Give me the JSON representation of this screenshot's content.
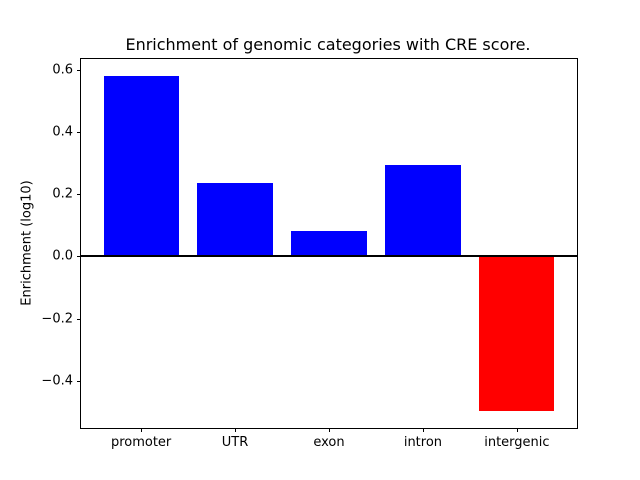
{
  "figure": {
    "background": "#ffffff"
  },
  "chart_data": {
    "type": "bar",
    "title": "Enrichment of genomic categories with CRE score.",
    "xlabel": "",
    "ylabel": "Enrichment (log10)",
    "categories": [
      "promoter",
      "UTR",
      "exon",
      "intron",
      "intergenic"
    ],
    "values": [
      0.58,
      0.235,
      0.082,
      0.295,
      -0.497
    ],
    "positive_color": "#0000ff",
    "negative_color": "#ff0000",
    "bar_colors": [
      "#0000ff",
      "#0000ff",
      "#0000ff",
      "#0000ff",
      "#ff0000"
    ],
    "ylim": [
      -0.551,
      0.634
    ],
    "yticks": [
      -0.4,
      -0.2,
      0.0,
      0.2,
      0.4,
      0.6
    ],
    "grid": false,
    "zero_line": true,
    "legend": "none",
    "axis_color": "#000000"
  }
}
